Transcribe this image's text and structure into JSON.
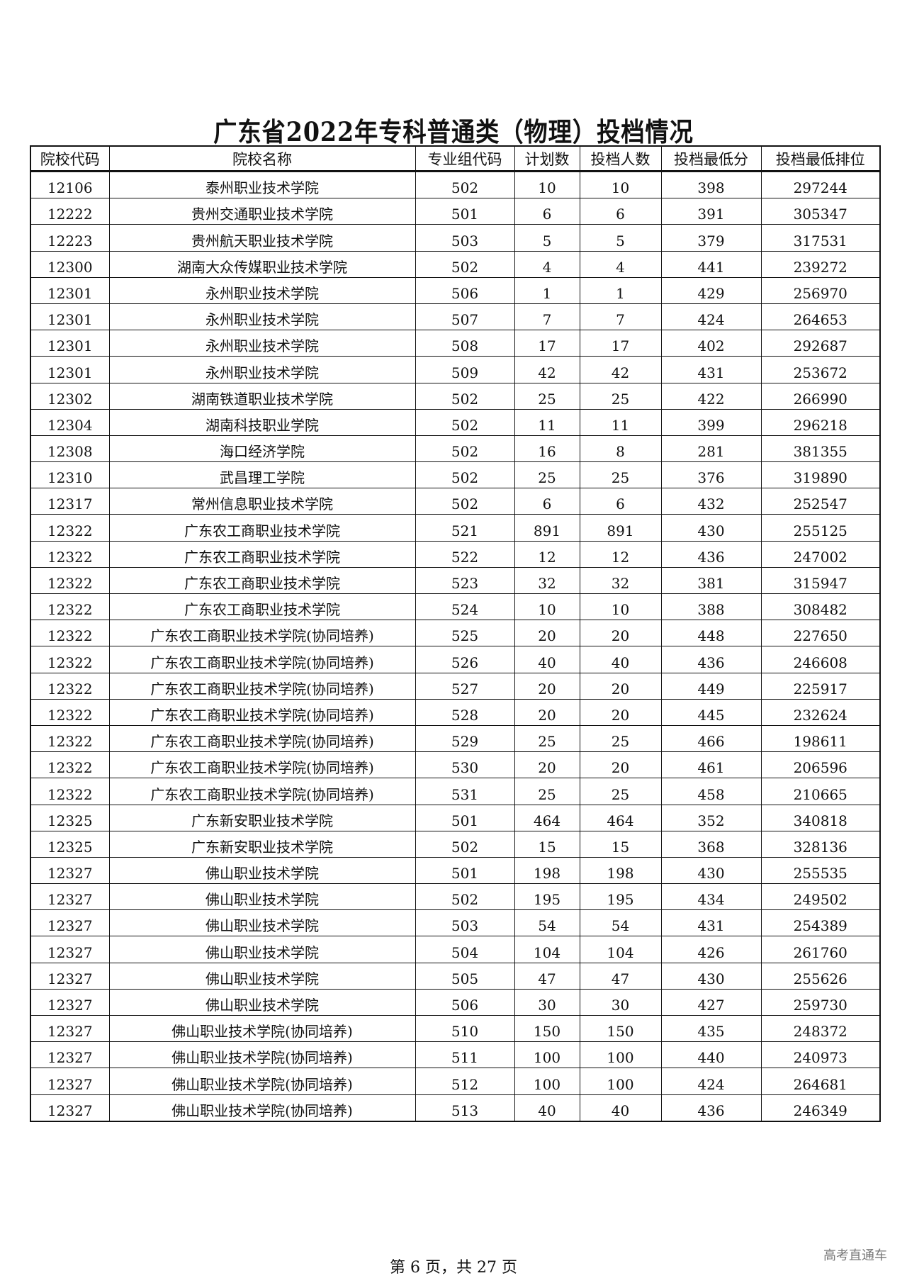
{
  "title": "广东省2022年专科普通类（物理）投档情况",
  "columns": [
    "院校代码",
    "院校名称",
    "专业组代码",
    "计划数",
    "投档人数",
    "投档最低分",
    "投档最低排位"
  ],
  "rows": [
    [
      "12106",
      "泰州职业技术学院",
      "502",
      "10",
      "10",
      "398",
      "297244"
    ],
    [
      "12222",
      "贵州交通职业技术学院",
      "501",
      "6",
      "6",
      "391",
      "305347"
    ],
    [
      "12223",
      "贵州航天职业技术学院",
      "503",
      "5",
      "5",
      "379",
      "317531"
    ],
    [
      "12300",
      "湖南大众传媒职业技术学院",
      "502",
      "4",
      "4",
      "441",
      "239272"
    ],
    [
      "12301",
      "永州职业技术学院",
      "506",
      "1",
      "1",
      "429",
      "256970"
    ],
    [
      "12301",
      "永州职业技术学院",
      "507",
      "7",
      "7",
      "424",
      "264653"
    ],
    [
      "12301",
      "永州职业技术学院",
      "508",
      "17",
      "17",
      "402",
      "292687"
    ],
    [
      "12301",
      "永州职业技术学院",
      "509",
      "42",
      "42",
      "431",
      "253672"
    ],
    [
      "12302",
      "湖南铁道职业技术学院",
      "502",
      "25",
      "25",
      "422",
      "266990"
    ],
    [
      "12304",
      "湖南科技职业学院",
      "502",
      "11",
      "11",
      "399",
      "296218"
    ],
    [
      "12308",
      "海口经济学院",
      "502",
      "16",
      "8",
      "281",
      "381355"
    ],
    [
      "12310",
      "武昌理工学院",
      "502",
      "25",
      "25",
      "376",
      "319890"
    ],
    [
      "12317",
      "常州信息职业技术学院",
      "502",
      "6",
      "6",
      "432",
      "252547"
    ],
    [
      "12322",
      "广东农工商职业技术学院",
      "521",
      "891",
      "891",
      "430",
      "255125"
    ],
    [
      "12322",
      "广东农工商职业技术学院",
      "522",
      "12",
      "12",
      "436",
      "247002"
    ],
    [
      "12322",
      "广东农工商职业技术学院",
      "523",
      "32",
      "32",
      "381",
      "315947"
    ],
    [
      "12322",
      "广东农工商职业技术学院",
      "524",
      "10",
      "10",
      "388",
      "308482"
    ],
    [
      "12322",
      "广东农工商职业技术学院(协同培养)",
      "525",
      "20",
      "20",
      "448",
      "227650"
    ],
    [
      "12322",
      "广东农工商职业技术学院(协同培养)",
      "526",
      "40",
      "40",
      "436",
      "246608"
    ],
    [
      "12322",
      "广东农工商职业技术学院(协同培养)",
      "527",
      "20",
      "20",
      "449",
      "225917"
    ],
    [
      "12322",
      "广东农工商职业技术学院(协同培养)",
      "528",
      "20",
      "20",
      "445",
      "232624"
    ],
    [
      "12322",
      "广东农工商职业技术学院(协同培养)",
      "529",
      "25",
      "25",
      "466",
      "198611"
    ],
    [
      "12322",
      "广东农工商职业技术学院(协同培养)",
      "530",
      "20",
      "20",
      "461",
      "206596"
    ],
    [
      "12322",
      "广东农工商职业技术学院(协同培养)",
      "531",
      "25",
      "25",
      "458",
      "210665"
    ],
    [
      "12325",
      "广东新安职业技术学院",
      "501",
      "464",
      "464",
      "352",
      "340818"
    ],
    [
      "12325",
      "广东新安职业技术学院",
      "502",
      "15",
      "15",
      "368",
      "328136"
    ],
    [
      "12327",
      "佛山职业技术学院",
      "501",
      "198",
      "198",
      "430",
      "255535"
    ],
    [
      "12327",
      "佛山职业技术学院",
      "502",
      "195",
      "195",
      "434",
      "249502"
    ],
    [
      "12327",
      "佛山职业技术学院",
      "503",
      "54",
      "54",
      "431",
      "254389"
    ],
    [
      "12327",
      "佛山职业技术学院",
      "504",
      "104",
      "104",
      "426",
      "261760"
    ],
    [
      "12327",
      "佛山职业技术学院",
      "505",
      "47",
      "47",
      "430",
      "255626"
    ],
    [
      "12327",
      "佛山职业技术学院",
      "506",
      "30",
      "30",
      "427",
      "259730"
    ],
    [
      "12327",
      "佛山职业技术学院(协同培养)",
      "510",
      "150",
      "150",
      "435",
      "248372"
    ],
    [
      "12327",
      "佛山职业技术学院(协同培养)",
      "511",
      "100",
      "100",
      "440",
      "240973"
    ],
    [
      "12327",
      "佛山职业技术学院(协同培养)",
      "512",
      "100",
      "100",
      "424",
      "264681"
    ],
    [
      "12327",
      "佛山职业技术学院(协同培养)",
      "513",
      "40",
      "40",
      "436",
      "246349"
    ]
  ],
  "footer": "第 6 页，共 27 页",
  "brand": "高考直通车"
}
